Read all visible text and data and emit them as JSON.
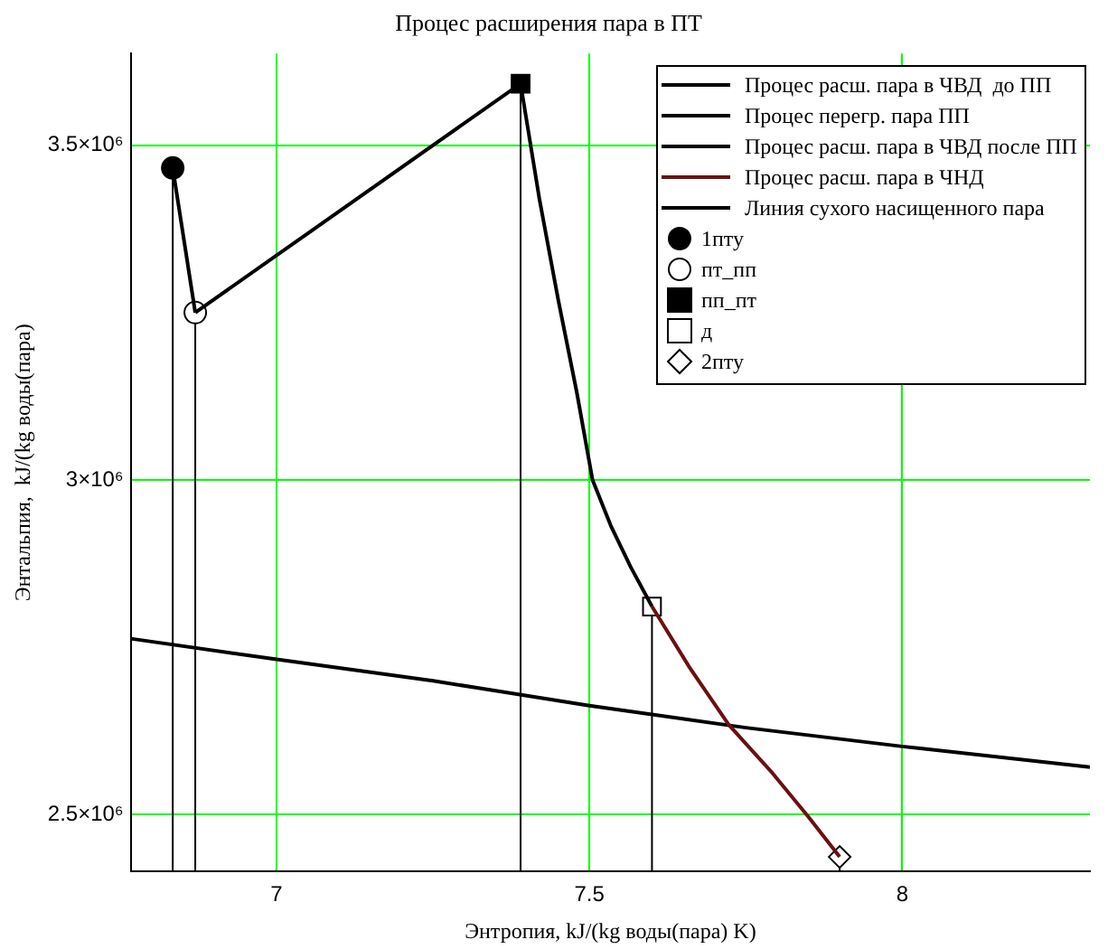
{
  "chart_data": {
    "type": "line",
    "title": "Процес расширения пара в ПТ",
    "xlabel": "Энтропия, kJ/(kg воды(пара) K)",
    "ylabel": "Энтальпия,  kJ/(kg воды(пара)",
    "xlim": [
      6.767,
      8.3
    ],
    "xticks": [
      7,
      7.5,
      8
    ],
    "ylim": [
      2415000,
      3637000
    ],
    "yticks": [
      {
        "value": 2500000,
        "label": "2.5×10⁶"
      },
      {
        "value": 3000000,
        "label": "3×10⁶"
      },
      {
        "value": 3500000,
        "label": "3.5×10⁶"
      }
    ],
    "grid": true,
    "legend": "top right",
    "marker": "none",
    "line_style": "solid",
    "series": [
      {
        "name": "Процес расш. пара в ЧВД  до ПП",
        "color": "#000000",
        "x": [
          6.834,
          6.87
        ],
        "values": [
          3466000,
          3250000
        ]
      },
      {
        "name": "Процес перегр. пара ПП",
        "color": "#000000",
        "x": [
          6.87,
          7.39
        ],
        "values": [
          3250000,
          3592000
        ]
      },
      {
        "name": "Процес расш. пара в ЧВД после ПП",
        "color": "#000000",
        "x": [
          7.39,
          7.42,
          7.45,
          7.48,
          7.505,
          7.535,
          7.566,
          7.6
        ],
        "values": [
          3592000,
          3420000,
          3270000,
          3130000,
          3000000,
          2930000,
          2870000,
          2811000
        ]
      },
      {
        "name": "Процес расш. пара в ЧНД",
        "color": "#6b1010",
        "x": [
          7.6,
          7.66,
          7.723,
          7.79,
          7.85,
          7.9
        ],
        "values": [
          2811000,
          2720000,
          2634000,
          2565000,
          2497000,
          2437000
        ]
      },
      {
        "name": "Линия сухого насищенного пара",
        "color": "#000000",
        "x": [
          6.767,
          7.0,
          7.25,
          7.5,
          7.75,
          8.0,
          8.3
        ],
        "values": [
          2763000,
          2732000,
          2700000,
          2663000,
          2630000,
          2602000,
          2571000
        ]
      },
      {
        "name": "1пту",
        "type": "lollipop",
        "marker": "circle",
        "color": "#000000",
        "colors": [
          "#000000"
        ],
        "x": [
          6.834
        ],
        "values": [
          3466000
        ]
      },
      {
        "name": "пт_пп",
        "type": "lollipop",
        "marker": "circle",
        "color": "#000000",
        "colors": [
          "#ffffff"
        ],
        "x": [
          6.87
        ],
        "values": [
          3250000
        ]
      },
      {
        "name": "пп_пт",
        "type": "lollipop",
        "marker": "square",
        "color": "#000000",
        "colors": [
          "#000000"
        ],
        "x": [
          7.39
        ],
        "values": [
          3592000
        ]
      },
      {
        "name": "д",
        "type": "lollipop",
        "marker": "square",
        "color": "#000000",
        "colors": [
          "#ffffff"
        ],
        "x": [
          7.6
        ],
        "values": [
          2811000
        ]
      },
      {
        "name": "2пту",
        "type": "lollipop",
        "marker": "diamond",
        "color": "#000000",
        "colors": [
          "#ffffff"
        ],
        "x": [
          7.9
        ],
        "values": [
          2437000
        ]
      }
    ]
  }
}
